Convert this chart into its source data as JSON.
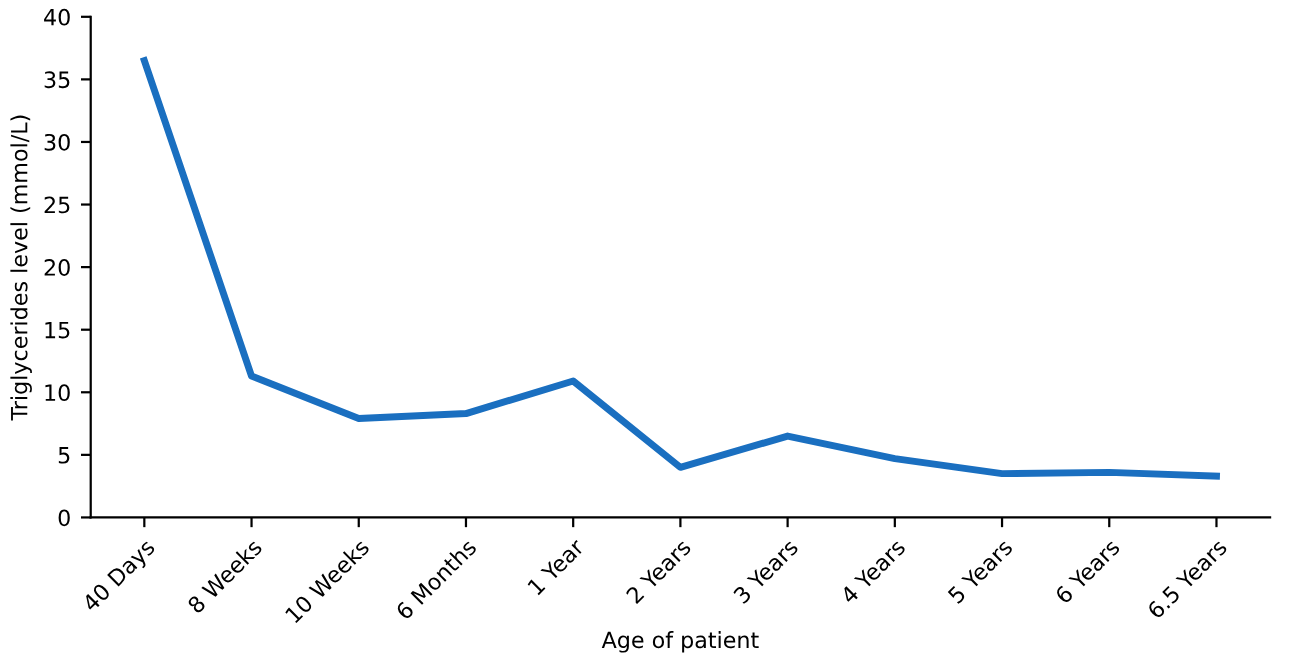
{
  "chart_data": {
    "type": "line",
    "xlabel": "Age of patient",
    "ylabel": "Triglycerides level (mmol/L)",
    "categories": [
      "40 Days",
      "8 Weeks",
      "10 Weeks",
      "6 Months",
      "1 Year",
      "2 Years",
      "3 Years",
      "4 Years",
      "5 Years",
      "6 Years",
      "6.5 Years"
    ],
    "series": [
      {
        "color": "#1a6fc0",
        "values": [
          36.5,
          11.3,
          7.9,
          8.3,
          10.9,
          4.0,
          6.5,
          4.7,
          3.5,
          3.6,
          3.3
        ]
      }
    ],
    "ylim": [
      0,
      40
    ],
    "yticks": [
      0,
      5,
      10,
      15,
      20,
      25,
      30,
      35,
      40
    ],
    "grid": false,
    "legend": false,
    "marker": "none",
    "line_style": "solid"
  }
}
